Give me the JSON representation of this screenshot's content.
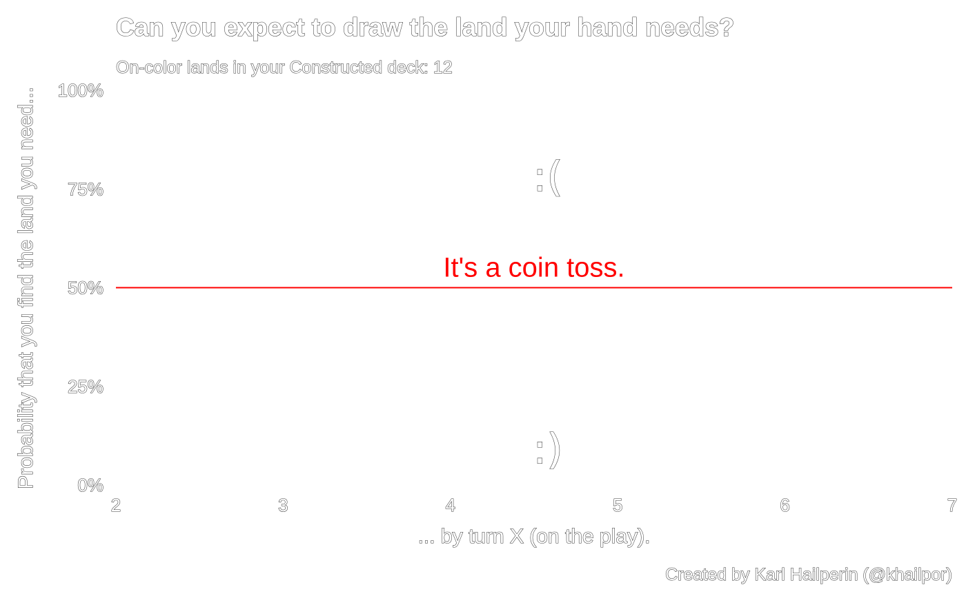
{
  "colors": {
    "background": "#ffffff",
    "reference_line": "#ff0000",
    "text_outline": "#3a3a3a"
  },
  "chart_data": {
    "type": "line",
    "title": "Can you expect to draw the land your hand needs?",
    "subtitle": "On-color lands in your Constructed deck: 12",
    "xlabel": "... by turn X (on the play).",
    "ylabel": "Probability that you find the land you need...",
    "caption": "Created by Karl Hailperin (@khailpor)",
    "xlim": [
      2,
      7
    ],
    "ylim": [
      0,
      1
    ],
    "x_ticks": [
      2,
      3,
      4,
      5,
      6,
      7
    ],
    "x_tick_labels": [
      "2",
      "3",
      "4",
      "5",
      "6",
      "7"
    ],
    "y_ticks": [
      0,
      0.25,
      0.5,
      0.75,
      1
    ],
    "y_tick_labels": [
      "0%",
      "25%",
      "50%",
      "75%",
      "100%"
    ],
    "grid": false,
    "reference_lines": [
      {
        "axis": "y",
        "value": 0.5,
        "color": "#ff0000",
        "label": "It's a coin toss."
      }
    ],
    "annotations": [
      {
        "text": ":(",
        "x": 4.5,
        "y": 0.78
      },
      {
        "text": ":)",
        "x": 4.5,
        "y": 0.09
      }
    ]
  }
}
